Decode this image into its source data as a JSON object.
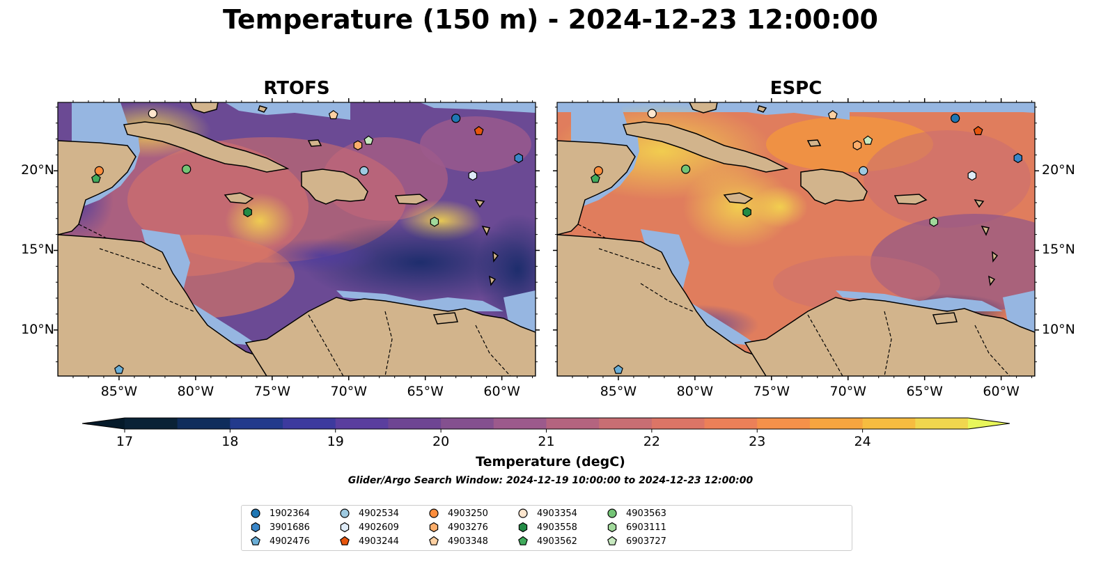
{
  "title": "Temperature (150 m) - 2024-12-23 12:00:00",
  "panels": [
    {
      "title": "RTOFS"
    },
    {
      "title": "ESPC"
    }
  ],
  "lon_ticks": [
    "85°W",
    "80°W",
    "75°W",
    "70°W",
    "65°W",
    "60°W"
  ],
  "lat_ticks": [
    "20°N",
    "15°N",
    "10°N"
  ],
  "colorbar": {
    "label": "Temperature (degC)",
    "ticks": [
      "17",
      "18",
      "19",
      "20",
      "21",
      "22",
      "23",
      "24"
    ],
    "colors": [
      "#0a2236",
      "#0f2d5c",
      "#233a8c",
      "#3d3a9e",
      "#5a3e9e",
      "#6e4593",
      "#84508f",
      "#9c5a8c",
      "#b4647f",
      "#c86e73",
      "#dc7566",
      "#ec8058",
      "#f5914a",
      "#f6a53f",
      "#f6bc40",
      "#f0d64e"
    ],
    "extend_low": "#051a2a",
    "extend_high": "#e8f65a"
  },
  "search_window": "Glider/Argo Search Window: 2024-12-19 10:00:00 to 2024-12-23 12:00:00",
  "legend": [
    {
      "id": "1902364",
      "marker": "circle",
      "color": "#1f77b4"
    },
    {
      "id": "3901686",
      "marker": "hexagon",
      "color": "#3a86c8"
    },
    {
      "id": "4902476",
      "marker": "pentagon",
      "color": "#6baed6"
    },
    {
      "id": "4902534",
      "marker": "circle",
      "color": "#9ecae1"
    },
    {
      "id": "4902609",
      "marker": "hexagon",
      "color": "#deebf7"
    },
    {
      "id": "4903244",
      "marker": "pentagon",
      "color": "#e6550d"
    },
    {
      "id": "4903250",
      "marker": "circle",
      "color": "#fd8d3c"
    },
    {
      "id": "4903276",
      "marker": "hexagon",
      "color": "#fdae6b"
    },
    {
      "id": "4903348",
      "marker": "pentagon",
      "color": "#fdd0a2"
    },
    {
      "id": "4903354",
      "marker": "circle",
      "color": "#fee6ce"
    },
    {
      "id": "4903558",
      "marker": "hexagon",
      "color": "#238b45"
    },
    {
      "id": "4903562",
      "marker": "pentagon",
      "color": "#41ab5d"
    },
    {
      "id": "4903563",
      "marker": "circle",
      "color": "#74c476"
    },
    {
      "id": "6903111",
      "marker": "hexagon",
      "color": "#a1d99b"
    },
    {
      "id": "6903727",
      "marker": "pentagon",
      "color": "#c7e9c0"
    }
  ],
  "floats": [
    {
      "id": "4903354",
      "lon": -82.8,
      "lat": 23.6
    },
    {
      "id": "1902364",
      "lon": -63.0,
      "lat": 23.3
    },
    {
      "id": "4903348",
      "lon": -71.0,
      "lat": 23.5
    },
    {
      "id": "4903244",
      "lon": -61.5,
      "lat": 22.5
    },
    {
      "id": "6903727",
      "lon": -68.7,
      "lat": 21.9
    },
    {
      "id": "4903276",
      "lon": -69.4,
      "lat": 21.6
    },
    {
      "id": "3901686",
      "lon": -58.9,
      "lat": 20.8
    },
    {
      "id": "4903250",
      "lon": -86.3,
      "lat": 20.0
    },
    {
      "id": "4903563",
      "lon": -80.6,
      "lat": 20.1
    },
    {
      "id": "4902534",
      "lon": -69.0,
      "lat": 20.0
    },
    {
      "id": "4902609",
      "lon": -61.9,
      "lat": 19.7
    },
    {
      "id": "4903562",
      "lon": -86.5,
      "lat": 19.5
    },
    {
      "id": "4903558",
      "lon": -76.6,
      "lat": 17.4
    },
    {
      "id": "6903111",
      "lon": -64.4,
      "lat": 16.8
    },
    {
      "id": "4902476",
      "lon": -85.0,
      "lat": 7.5
    }
  ]
}
